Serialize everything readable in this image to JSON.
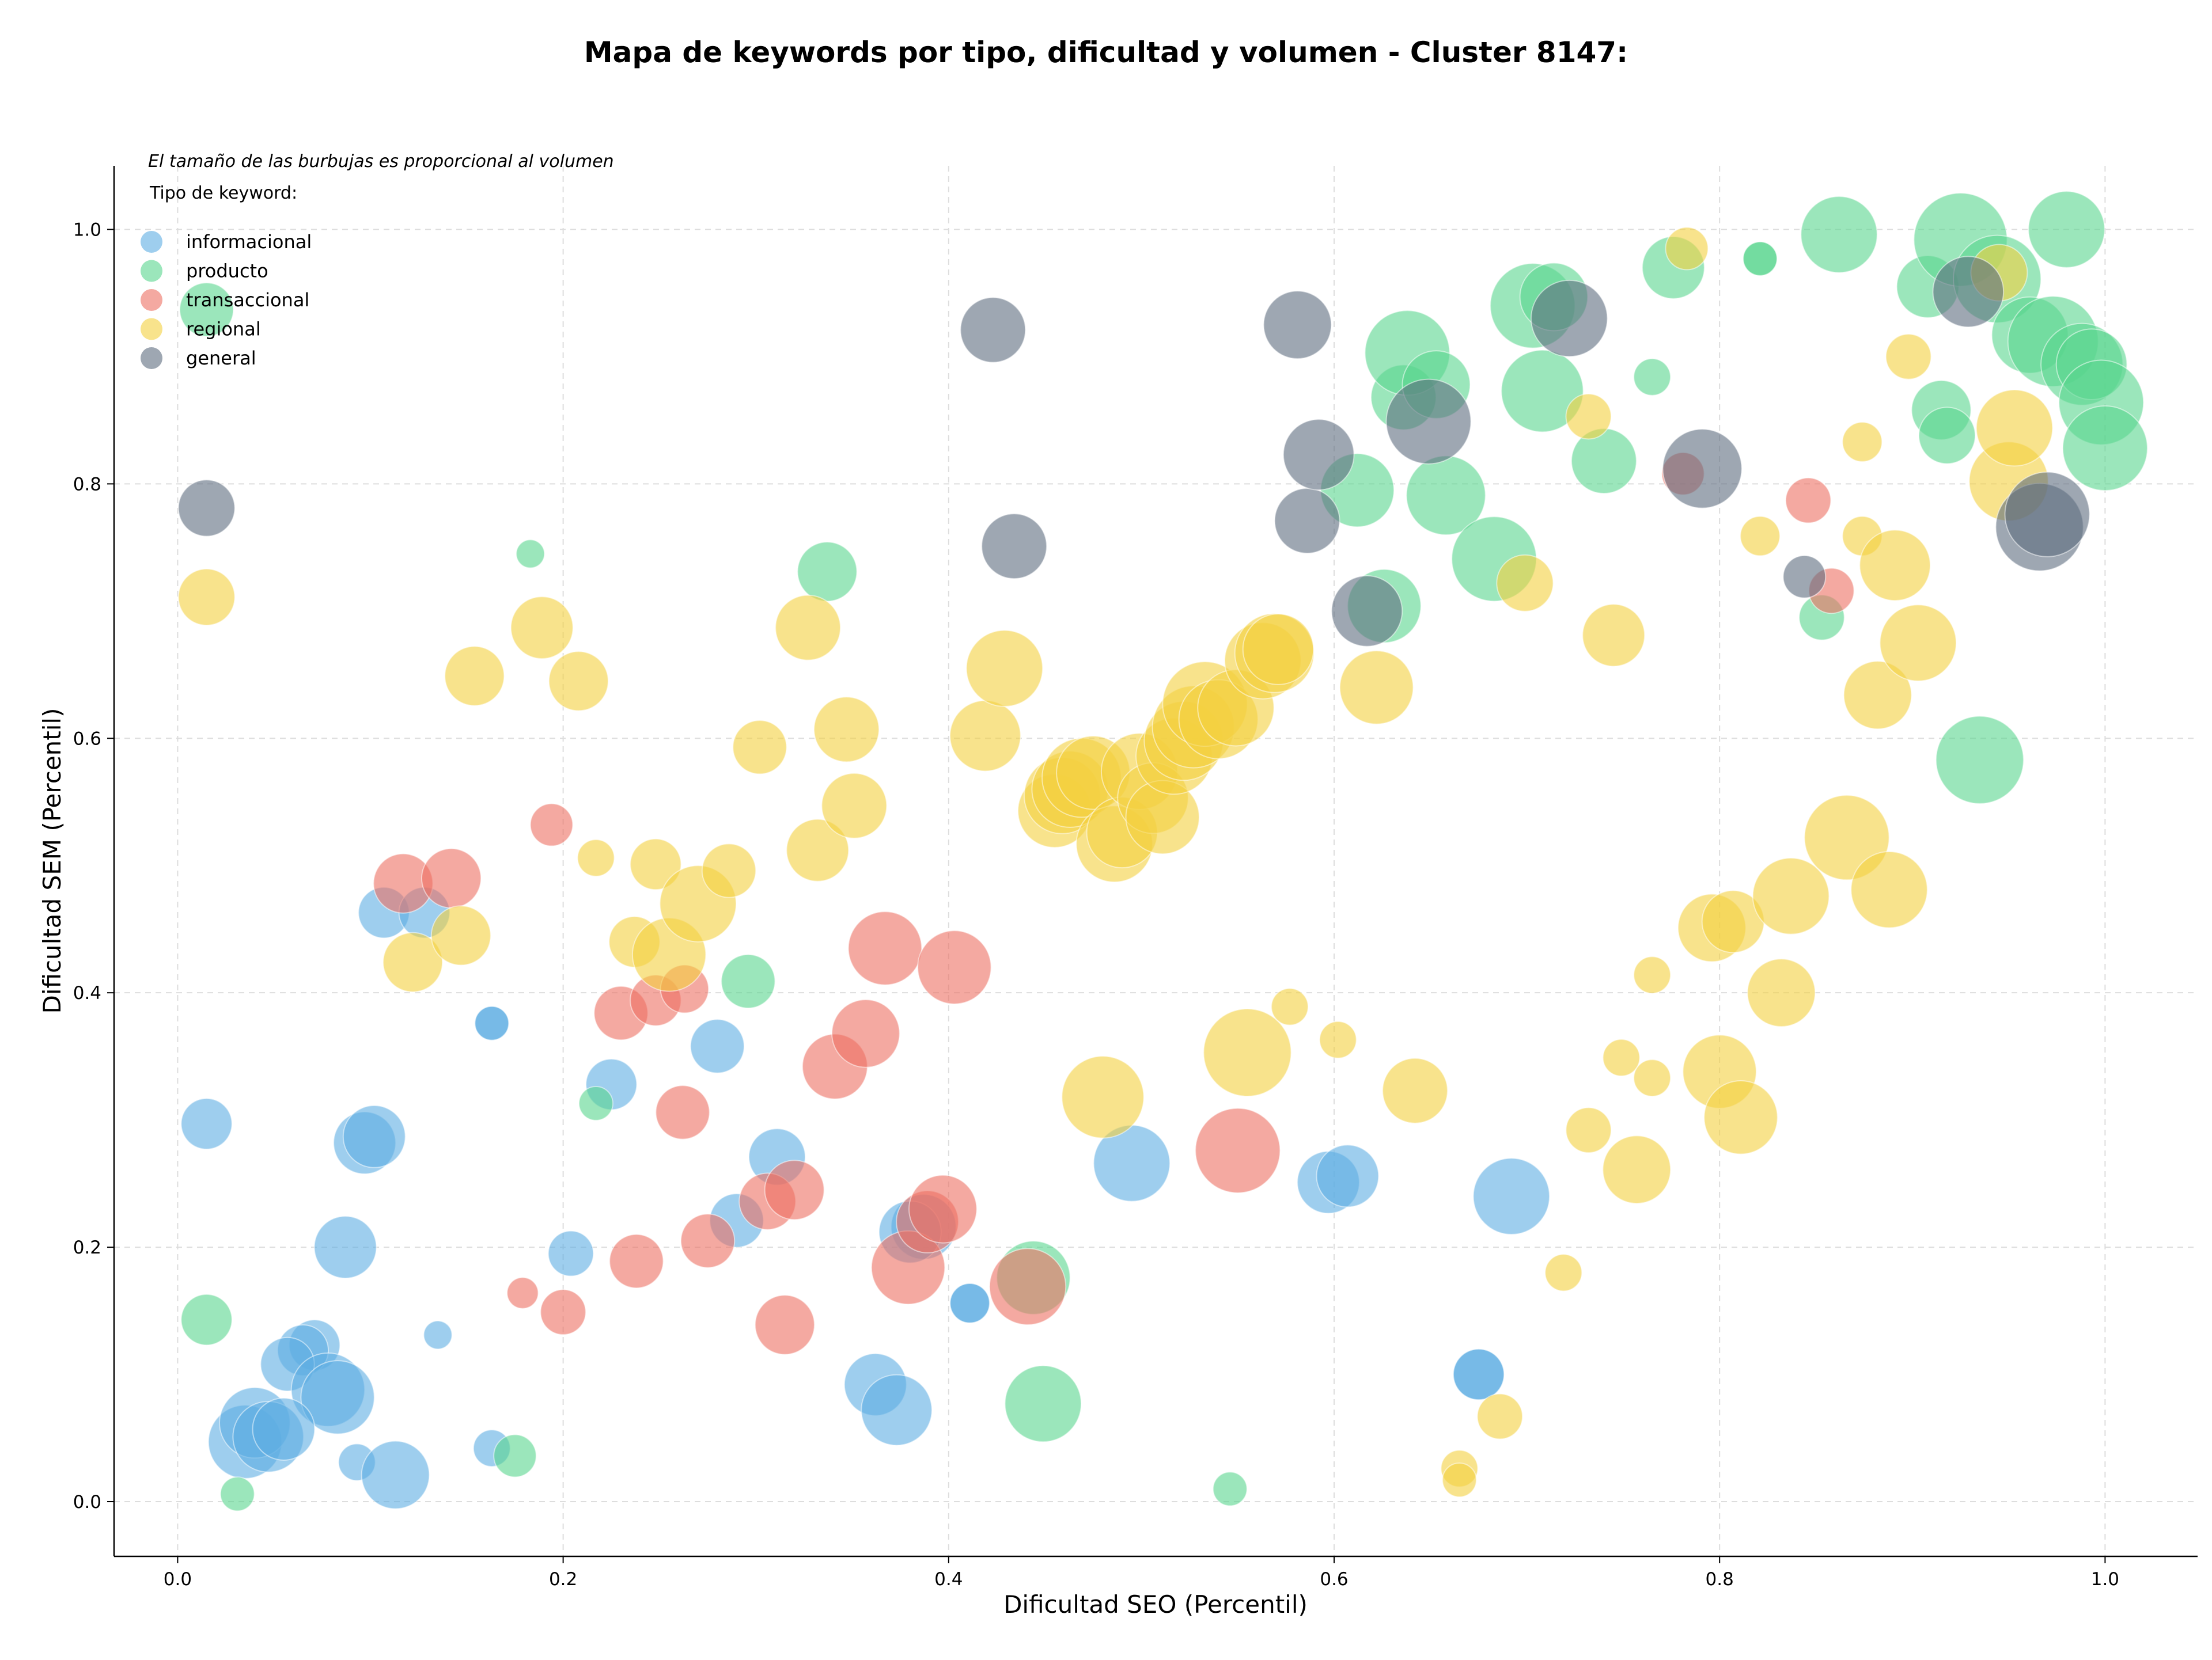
{
  "chart_data": {
    "type": "scatter",
    "title": "Mapa de keywords por tipo, dificultad y volumen - Cluster 8147:",
    "xlabel": "Dificultad SEO (Percentil)",
    "ylabel": "Dificultad SEM (Percentil)",
    "note": "El tamaño de las burbujas es proporcional al volumen",
    "legend_title": "Tipo de keyword:",
    "legend_position": "top-left",
    "grid": true,
    "xlim": [
      -0.033,
      1.048
    ],
    "ylim": [
      -0.043,
      1.05
    ],
    "xticks": [
      "0.0",
      "0.2",
      "0.4",
      "0.6",
      "0.8",
      "1.0"
    ],
    "yticks": [
      "0.0",
      "0.2",
      "0.4",
      "0.6",
      "0.8",
      "1.0"
    ],
    "series": [
      {
        "name": "informacional",
        "color": "#5DADE2",
        "points": [
          [
            0.015,
            0.297,
            18
          ],
          [
            0.097,
            0.282,
            22
          ],
          [
            0.102,
            0.287,
            22
          ],
          [
            0.087,
            0.2,
            22
          ],
          [
            0.107,
            0.463,
            18
          ],
          [
            0.128,
            0.463,
            18
          ],
          [
            0.163,
            0.376,
            12
          ],
          [
            0.163,
            0.376,
            12
          ],
          [
            0.225,
            0.328,
            18
          ],
          [
            0.204,
            0.195,
            16
          ],
          [
            0.135,
            0.131,
            10
          ],
          [
            0.28,
            0.358,
            19
          ],
          [
            0.311,
            0.271,
            20
          ],
          [
            0.29,
            0.221,
            19
          ],
          [
            0.071,
            0.123,
            18
          ],
          [
            0.065,
            0.119,
            18
          ],
          [
            0.057,
            0.108,
            19
          ],
          [
            0.078,
            0.088,
            26
          ],
          [
            0.083,
            0.082,
            26
          ],
          [
            0.035,
            0.047,
            26
          ],
          [
            0.04,
            0.062,
            25
          ],
          [
            0.047,
            0.051,
            25
          ],
          [
            0.055,
            0.057,
            22
          ],
          [
            0.093,
            0.031,
            13
          ],
          [
            0.113,
            0.021,
            24
          ],
          [
            0.163,
            0.042,
            13
          ],
          [
            0.362,
            0.092,
            22
          ],
          [
            0.373,
            0.072,
            25
          ],
          [
            0.387,
            0.216,
            23
          ],
          [
            0.38,
            0.212,
            22
          ],
          [
            0.411,
            0.156,
            14
          ],
          [
            0.411,
            0.156,
            14
          ],
          [
            0.495,
            0.266,
            27
          ],
          [
            0.597,
            0.251,
            22
          ],
          [
            0.607,
            0.256,
            22
          ],
          [
            0.692,
            0.24,
            27
          ],
          [
            0.675,
            0.1,
            18
          ],
          [
            0.675,
            0.1,
            18
          ]
        ]
      },
      {
        "name": "producto",
        "color": "#58D68D",
        "points": [
          [
            0.015,
            0.937,
            19
          ],
          [
            0.015,
            0.143,
            18
          ],
          [
            0.031,
            0.006,
            12
          ],
          [
            0.183,
            0.745,
            10
          ],
          [
            0.217,
            0.313,
            12
          ],
          [
            0.175,
            0.036,
            15
          ],
          [
            0.296,
            0.409,
            19
          ],
          [
            0.337,
            0.731,
            21
          ],
          [
            0.444,
            0.176,
            26
          ],
          [
            0.449,
            0.077,
            27
          ],
          [
            0.546,
            0.01,
            12
          ],
          [
            0.612,
            0.795,
            26
          ],
          [
            0.626,
            0.704,
            26
          ],
          [
            0.636,
            0.868,
            23
          ],
          [
            0.638,
            0.903,
            30
          ],
          [
            0.653,
            0.878,
            24
          ],
          [
            0.658,
            0.791,
            28
          ],
          [
            0.683,
            0.741,
            30
          ],
          [
            0.703,
            0.94,
            30
          ],
          [
            0.714,
            0.947,
            24
          ],
          [
            0.708,
            0.873,
            29
          ],
          [
            0.74,
            0.818,
            23
          ],
          [
            0.765,
            0.884,
            13
          ],
          [
            0.776,
            0.97,
            22
          ],
          [
            0.821,
            0.977,
            12
          ],
          [
            0.821,
            0.977,
            12
          ],
          [
            0.853,
            0.695,
            16
          ],
          [
            0.862,
            0.996,
            27
          ],
          [
            0.908,
            0.955,
            22
          ],
          [
            0.915,
            0.858,
            21
          ],
          [
            0.925,
            0.992,
            33
          ],
          [
            0.918,
            0.838,
            20
          ],
          [
            0.935,
            0.583,
            31
          ],
          [
            0.944,
            0.961,
            31
          ],
          [
            0.961,
            0.917,
            27
          ],
          [
            0.973,
            0.912,
            32
          ],
          [
            0.98,
            1.0,
            27
          ],
          [
            0.988,
            0.894,
            29
          ],
          [
            0.993,
            0.894,
            25
          ],
          [
            0.998,
            0.864,
            30
          ],
          [
            1.0,
            0.828,
            30
          ]
        ]
      },
      {
        "name": "transaccional",
        "color": "#EC7063",
        "points": [
          [
            0.117,
            0.486,
            21
          ],
          [
            0.142,
            0.49,
            21
          ],
          [
            0.194,
            0.532,
            15
          ],
          [
            0.23,
            0.384,
            19
          ],
          [
            0.248,
            0.394,
            18
          ],
          [
            0.263,
            0.403,
            17
          ],
          [
            0.262,
            0.306,
            19
          ],
          [
            0.238,
            0.189,
            19
          ],
          [
            0.2,
            0.149,
            16
          ],
          [
            0.179,
            0.164,
            11
          ],
          [
            0.275,
            0.205,
            19
          ],
          [
            0.306,
            0.236,
            20
          ],
          [
            0.32,
            0.245,
            21
          ],
          [
            0.341,
            0.342,
            23
          ],
          [
            0.357,
            0.368,
            24
          ],
          [
            0.367,
            0.435,
            26
          ],
          [
            0.403,
            0.42,
            26
          ],
          [
            0.379,
            0.184,
            26
          ],
          [
            0.389,
            0.22,
            22
          ],
          [
            0.397,
            0.23,
            24
          ],
          [
            0.315,
            0.139,
            21
          ],
          [
            0.441,
            0.169,
            27
          ],
          [
            0.55,
            0.276,
            30
          ],
          [
            0.781,
            0.808,
            15
          ],
          [
            0.846,
            0.787,
            16
          ],
          [
            0.858,
            0.716,
            16
          ]
        ]
      },
      {
        "name": "regional",
        "color": "#F4D03F",
        "points": [
          [
            0.015,
            0.711,
            20
          ],
          [
            0.122,
            0.424,
            21
          ],
          [
            0.147,
            0.445,
            21
          ],
          [
            0.154,
            0.649,
            21
          ],
          [
            0.189,
            0.687,
            22
          ],
          [
            0.208,
            0.645,
            21
          ],
          [
            0.217,
            0.506,
            13
          ],
          [
            0.237,
            0.44,
            18
          ],
          [
            0.248,
            0.501,
            18
          ],
          [
            0.255,
            0.43,
            26
          ],
          [
            0.27,
            0.47,
            27
          ],
          [
            0.286,
            0.496,
            19
          ],
          [
            0.302,
            0.593,
            19
          ],
          [
            0.327,
            0.687,
            23
          ],
          [
            0.332,
            0.512,
            22
          ],
          [
            0.347,
            0.607,
            23
          ],
          [
            0.351,
            0.547,
            23
          ],
          [
            0.419,
            0.602,
            25
          ],
          [
            0.429,
            0.655,
            27
          ],
          [
            0.455,
            0.543,
            26
          ],
          [
            0.459,
            0.555,
            27
          ],
          [
            0.463,
            0.56,
            27
          ],
          [
            0.469,
            0.569,
            28
          ],
          [
            0.475,
            0.573,
            26
          ],
          [
            0.486,
            0.517,
            27
          ],
          [
            0.49,
            0.526,
            25
          ],
          [
            0.499,
            0.574,
            27
          ],
          [
            0.506,
            0.553,
            25
          ],
          [
            0.511,
            0.538,
            26
          ],
          [
            0.517,
            0.586,
            27
          ],
          [
            0.522,
            0.598,
            28
          ],
          [
            0.527,
            0.609,
            29
          ],
          [
            0.533,
            0.627,
            30
          ],
          [
            0.54,
            0.615,
            28
          ],
          [
            0.549,
            0.624,
            27
          ],
          [
            0.563,
            0.661,
            27
          ],
          [
            0.569,
            0.667,
            28
          ],
          [
            0.571,
            0.67,
            25
          ],
          [
            0.48,
            0.318,
            29
          ],
          [
            0.555,
            0.353,
            31
          ],
          [
            0.577,
            0.389,
            13
          ],
          [
            0.602,
            0.363,
            13
          ],
          [
            0.622,
            0.64,
            26
          ],
          [
            0.642,
            0.323,
            23
          ],
          [
            0.665,
            0.026,
            13
          ],
          [
            0.665,
            0.017,
            12
          ],
          [
            0.686,
            0.067,
            16
          ],
          [
            0.699,
            0.722,
            20
          ],
          [
            0.719,
            0.18,
            13
          ],
          [
            0.732,
            0.853,
            16
          ],
          [
            0.732,
            0.292,
            16
          ],
          [
            0.745,
            0.681,
            22
          ],
          [
            0.749,
            0.349,
            13
          ],
          [
            0.757,
            0.261,
            24
          ],
          [
            0.765,
            0.414,
            13
          ],
          [
            0.765,
            0.333,
            13
          ],
          [
            0.783,
            0.985,
            15
          ],
          [
            0.796,
            0.451,
            24
          ],
          [
            0.8,
            0.338,
            26
          ],
          [
            0.807,
            0.456,
            22
          ],
          [
            0.811,
            0.302,
            26
          ],
          [
            0.821,
            0.759,
            14
          ],
          [
            0.832,
            0.4,
            24
          ],
          [
            0.837,
            0.476,
            27
          ],
          [
            0.866,
            0.522,
            30
          ],
          [
            0.874,
            0.833,
            14
          ],
          [
            0.874,
            0.759,
            14
          ],
          [
            0.882,
            0.634,
            24
          ],
          [
            0.888,
            0.481,
            27
          ],
          [
            0.891,
            0.736,
            25
          ],
          [
            0.898,
            0.9,
            16
          ],
          [
            0.903,
            0.675,
            27
          ],
          [
            0.945,
            0.966,
            20
          ],
          [
            0.95,
            0.802,
            28
          ],
          [
            0.953,
            0.844,
            27
          ]
        ]
      },
      {
        "name": "general",
        "color": "#5D6D7E",
        "points": [
          [
            0.015,
            0.781,
            20
          ],
          [
            0.423,
            0.921,
            23
          ],
          [
            0.434,
            0.751,
            23
          ],
          [
            0.581,
            0.925,
            24
          ],
          [
            0.586,
            0.771,
            23
          ],
          [
            0.592,
            0.823,
            25
          ],
          [
            0.617,
            0.7,
            25
          ],
          [
            0.649,
            0.849,
            30
          ],
          [
            0.722,
            0.93,
            27
          ],
          [
            0.791,
            0.812,
            28
          ],
          [
            0.844,
            0.727,
            15
          ],
          [
            0.929,
            0.951,
            25
          ],
          [
            0.966,
            0.766,
            31
          ],
          [
            0.97,
            0.776,
            30
          ]
        ]
      }
    ]
  }
}
